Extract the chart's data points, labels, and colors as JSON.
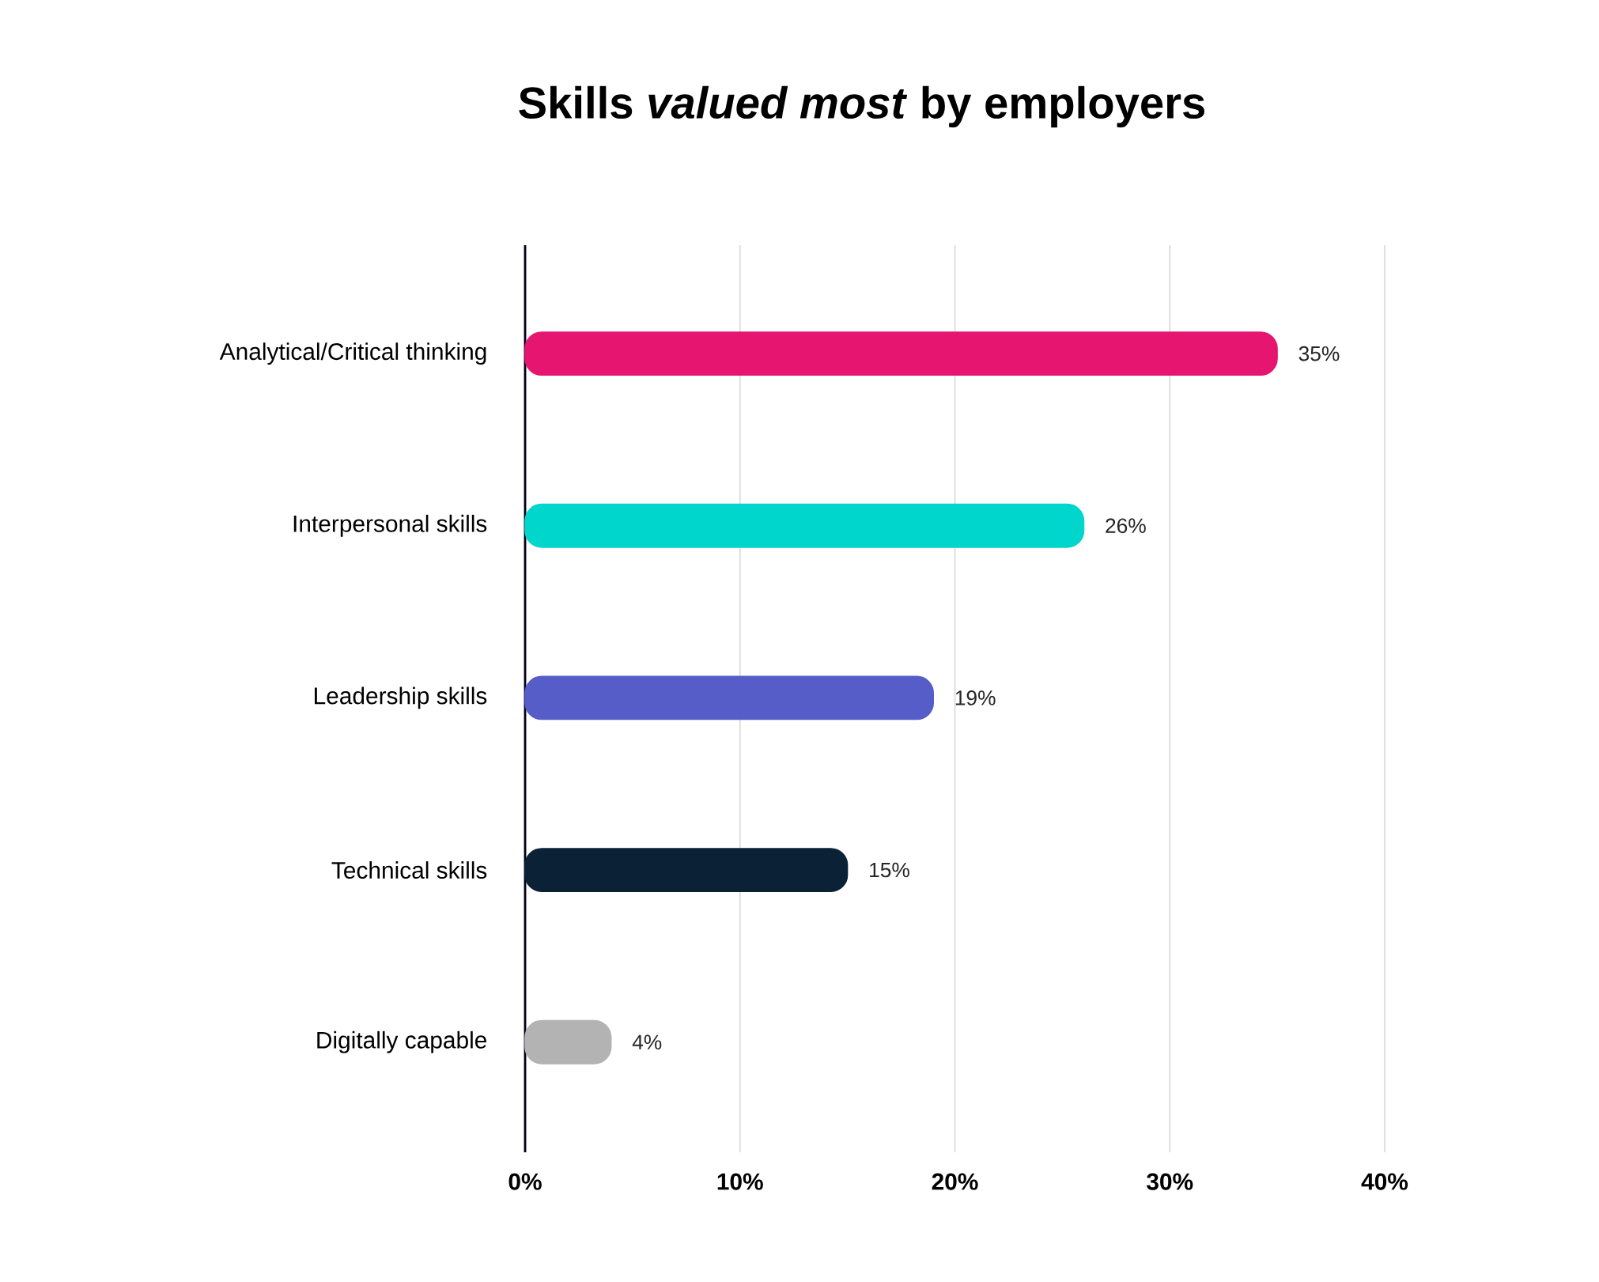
{
  "chart_data": {
    "type": "bar",
    "orientation": "horizontal",
    "title": "Skills *valued most* by employers",
    "categories": [
      "Analytical/Critical thinking",
      "Interpersonal skills",
      "Leadership skills",
      "Technical skills",
      "Digitally capable"
    ],
    "values": [
      35,
      26,
      19,
      15,
      4
    ],
    "colors": [
      "#e6156f",
      "#00d6cc",
      "#565cc8",
      "#0b2135",
      "#b3b3b3"
    ],
    "value_labels": [
      "35%",
      "26%",
      "19%",
      "15%",
      "4%"
    ],
    "xlim": [
      0,
      40
    ],
    "xticks": [
      {
        "value": 0,
        "label": "0%"
      },
      {
        "value": 10,
        "label": "10%"
      },
      {
        "value": 20,
        "label": "20%"
      },
      {
        "value": 30,
        "label": "30%"
      },
      {
        "value": 40,
        "label": "40%"
      }
    ],
    "grid": "x"
  }
}
